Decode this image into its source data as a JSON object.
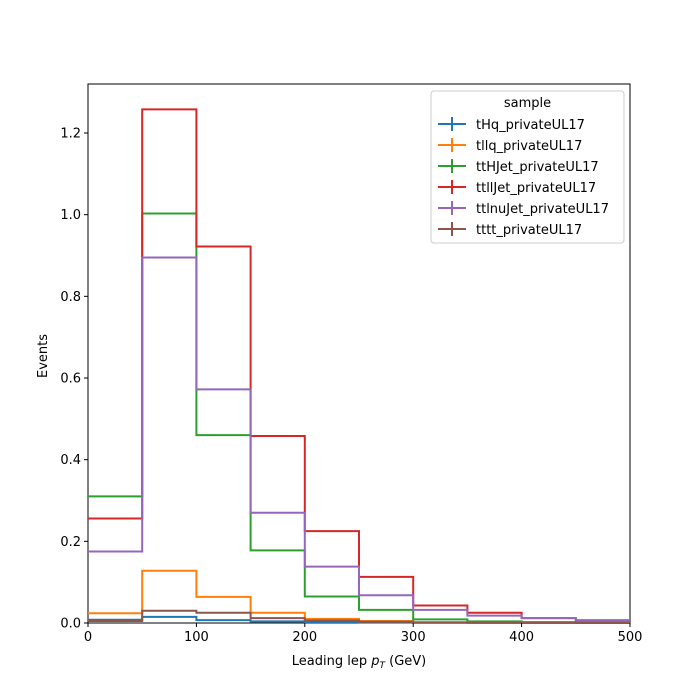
{
  "chart_data": {
    "type": "step-histogram",
    "xlabel": "Leading lep",
    "xlabel_symbol": "p",
    "xlabel_sub": "T",
    "xlabel_unit": "(GeV)",
    "ylabel": "Events",
    "xlim": [
      0,
      500
    ],
    "ylim": [
      0,
      1.32
    ],
    "xticks": [
      0,
      100,
      200,
      300,
      400,
      500
    ],
    "yticks": [
      0.0,
      0.2,
      0.4,
      0.6,
      0.8,
      1.0,
      1.2
    ],
    "bin_edges": [
      0,
      50,
      100,
      150,
      200,
      250,
      300,
      350,
      400,
      450,
      500
    ],
    "legend": {
      "title": "sample",
      "placement": "top-right"
    },
    "series": [
      {
        "name": "tHq_privateUL17",
        "color": "#1f77b4",
        "values": [
          0.008,
          0.015,
          0.007,
          0.004,
          0.002,
          0.001,
          0.0005,
          0.0003,
          0.0002,
          0.0001
        ]
      },
      {
        "name": "tllq_privateUL17",
        "color": "#ff7f0e",
        "values": [
          0.024,
          0.128,
          0.064,
          0.025,
          0.01,
          0.005,
          0.002,
          0.001,
          0.0005,
          0.0002
        ]
      },
      {
        "name": "ttHJet_privateUL17",
        "color": "#2ca02c",
        "values": [
          0.31,
          1.003,
          0.46,
          0.178,
          0.065,
          0.032,
          0.009,
          0.004,
          0.002,
          0.001
        ]
      },
      {
        "name": "ttllJet_privateUL17",
        "color": "#d62728",
        "values": [
          0.256,
          1.258,
          0.922,
          0.458,
          0.225,
          0.113,
          0.043,
          0.025,
          0.012,
          0.006
        ]
      },
      {
        "name": "ttlnuJet_privateUL17",
        "color": "#9467bd",
        "values": [
          0.175,
          0.895,
          0.572,
          0.27,
          0.138,
          0.068,
          0.032,
          0.018,
          0.012,
          0.007
        ]
      },
      {
        "name": "tttt_privateUL17",
        "color": "#8c564b",
        "values": [
          0.005,
          0.03,
          0.025,
          0.012,
          0.006,
          0.003,
          0.001,
          0.0005,
          0.0003,
          0.0001
        ]
      }
    ]
  }
}
